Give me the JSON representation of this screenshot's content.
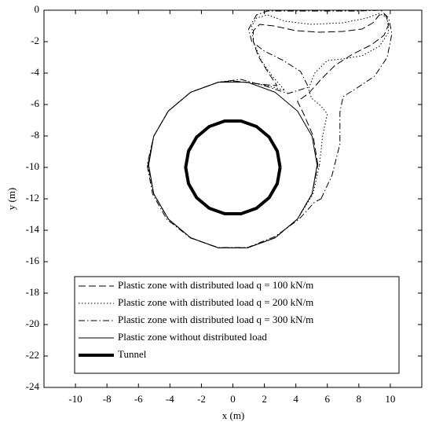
{
  "chart_data": {
    "type": "line",
    "xlabel": "x (m)",
    "ylabel": "y (m)",
    "xlim": [
      -12,
      12
    ],
    "ylim": [
      -24,
      0
    ],
    "xticks": [
      -10,
      -8,
      -6,
      -4,
      -2,
      0,
      2,
      4,
      6,
      8,
      10
    ],
    "yticks": [
      0,
      -2,
      -4,
      -6,
      -8,
      -10,
      -12,
      -14,
      -16,
      -18,
      -20,
      -22,
      -24
    ],
    "series": [
      {
        "name": "Plastic zone with distributed load q = 100 kN/m",
        "color": "#000000",
        "style": "dashed",
        "width": 1,
        "x": [
          5.4,
          5.1,
          4.5,
          4.1,
          4.8,
          5.6,
          6.5,
          7.6,
          8.8,
          9.6,
          9.9,
          9.7,
          9.3,
          8.9,
          8.2,
          7.0,
          5.5,
          4.0,
          2.6,
          1.7,
          1.3,
          1.3,
          1.6,
          2.2,
          2.8,
          2.2,
          0.93,
          0,
          -0.93,
          -2.68,
          -4.1,
          -5.03,
          -5.4,
          -5.03,
          -4.1,
          -2.68,
          -0.93,
          0.93,
          2.68,
          4.1,
          5.03,
          5.4
        ],
        "values": [
          -9.85,
          -8.0,
          -6.6,
          -5.8,
          -5.3,
          -4.4,
          -3.5,
          -2.8,
          -2.2,
          -1.6,
          -0.9,
          -0.3,
          -0.3,
          -0.8,
          -1.2,
          -1.35,
          -1.4,
          -1.3,
          -1.0,
          -0.9,
          -1.3,
          -2.0,
          -2.9,
          -3.9,
          -4.8,
          -4.75,
          -4.6,
          -4.5,
          -4.58,
          -5.22,
          -6.41,
          -8.02,
          -9.85,
          -11.68,
          -13.29,
          -14.48,
          -15.12,
          -15.12,
          -14.48,
          -13.29,
          -11.68,
          -9.85
        ]
      },
      {
        "name": "Plastic zone with distributed load q = 200 kN/m",
        "color": "#000000",
        "style": "dotted",
        "width": 1,
        "x": [
          5.5,
          5.7,
          6.0,
          5.6,
          5.0,
          4.8,
          5.2,
          6.0,
          7.0,
          8.2,
          9.3,
          9.9,
          9.8,
          9.3,
          8.5,
          7.0,
          5.0,
          3.3,
          2.2,
          1.5,
          1.2,
          1.3,
          1.8,
          2.5,
          3.3,
          2.2,
          0.93,
          0,
          -0.93,
          -2.68,
          -4.1,
          -5.03,
          -5.4,
          -5.03,
          -4.1,
          -2.68,
          -0.93,
          0.93,
          2.68,
          4.1,
          5.1,
          5.5
        ],
        "values": [
          -9.85,
          -8.0,
          -6.6,
          -6.1,
          -5.6,
          -5.0,
          -4.0,
          -3.2,
          -3.1,
          -2.9,
          -2.3,
          -1.4,
          -0.5,
          -0.2,
          -0.5,
          -0.8,
          -0.9,
          -0.7,
          -0.3,
          -0.5,
          -1.0,
          -2.0,
          -3.2,
          -4.2,
          -5.1,
          -4.8,
          -4.6,
          -4.5,
          -4.58,
          -5.22,
          -6.41,
          -8.02,
          -9.85,
          -11.68,
          -13.29,
          -14.48,
          -15.12,
          -15.12,
          -14.48,
          -13.29,
          -11.68,
          -9.85
        ]
      },
      {
        "name": "Plastic zone with distributed load q = 300 kN/m",
        "color": "#000000",
        "style": "dashdot",
        "width": 1,
        "x": [
          5.6,
          6.3,
          6.8,
          6.8,
          7.0,
          7.8,
          9.0,
          9.8,
          10.1,
          9.9,
          9.4,
          8.0,
          5.0,
          2.2,
          1.5,
          1.0,
          1.2,
          2.0,
          3.2,
          4.3,
          4.8,
          3.5,
          2.0,
          0.5,
          -0.93,
          -2.68,
          -4.1,
          -5.03,
          -5.45,
          -5.1,
          -4.2,
          -2.68,
          -0.93,
          0.93,
          2.68,
          4.2,
          5.2,
          5.6
        ],
        "values": [
          -12.0,
          -10.5,
          -8.5,
          -6.5,
          -5.5,
          -5.0,
          -4.2,
          -3.0,
          -1.5,
          -0.5,
          0,
          -0.05,
          -0.05,
          -0.05,
          -0.3,
          -1.2,
          -2.0,
          -2.6,
          -3.2,
          -3.9,
          -4.9,
          -5.3,
          -4.8,
          -4.4,
          -4.58,
          -5.22,
          -6.41,
          -8.02,
          -9.85,
          -11.7,
          -13.3,
          -14.5,
          -15.1,
          -15.1,
          -14.4,
          -13.3,
          -12.2,
          -12.0
        ]
      },
      {
        "name": "Plastic zone without distributed load",
        "color": "#000000",
        "style": "solid",
        "width": 1,
        "x": [
          5.35,
          5.03,
          4.1,
          2.68,
          0.93,
          -0.93,
          -2.68,
          -4.1,
          -5.03,
          -5.35,
          -5.03,
          -4.1,
          -2.68,
          -0.93,
          0.93,
          2.68,
          4.1,
          5.03,
          5.35
        ],
        "values": [
          -9.85,
          -8.02,
          -6.41,
          -5.22,
          -4.58,
          -4.58,
          -5.22,
          -6.41,
          -8.02,
          -9.85,
          -11.68,
          -13.29,
          -14.48,
          -15.12,
          -15.12,
          -14.48,
          -13.29,
          -11.68,
          -9.85
        ]
      },
      {
        "name": "Tunnel",
        "color": "#000000",
        "style": "solid",
        "width": 4,
        "x": [
          3,
          2.82,
          2.3,
          1.5,
          0.52,
          -0.52,
          -1.5,
          -2.3,
          -2.82,
          -3,
          -2.82,
          -2.3,
          -1.5,
          -0.52,
          0.52,
          1.5,
          2.3,
          2.82,
          3
        ],
        "values": [
          -10,
          -8.97,
          -8.07,
          -7.4,
          -7.05,
          -7.05,
          -7.4,
          -8.07,
          -8.97,
          -10,
          -11.03,
          -11.93,
          -12.6,
          -12.95,
          -12.95,
          -12.6,
          -11.93,
          -11.03,
          -10
        ]
      }
    ]
  }
}
